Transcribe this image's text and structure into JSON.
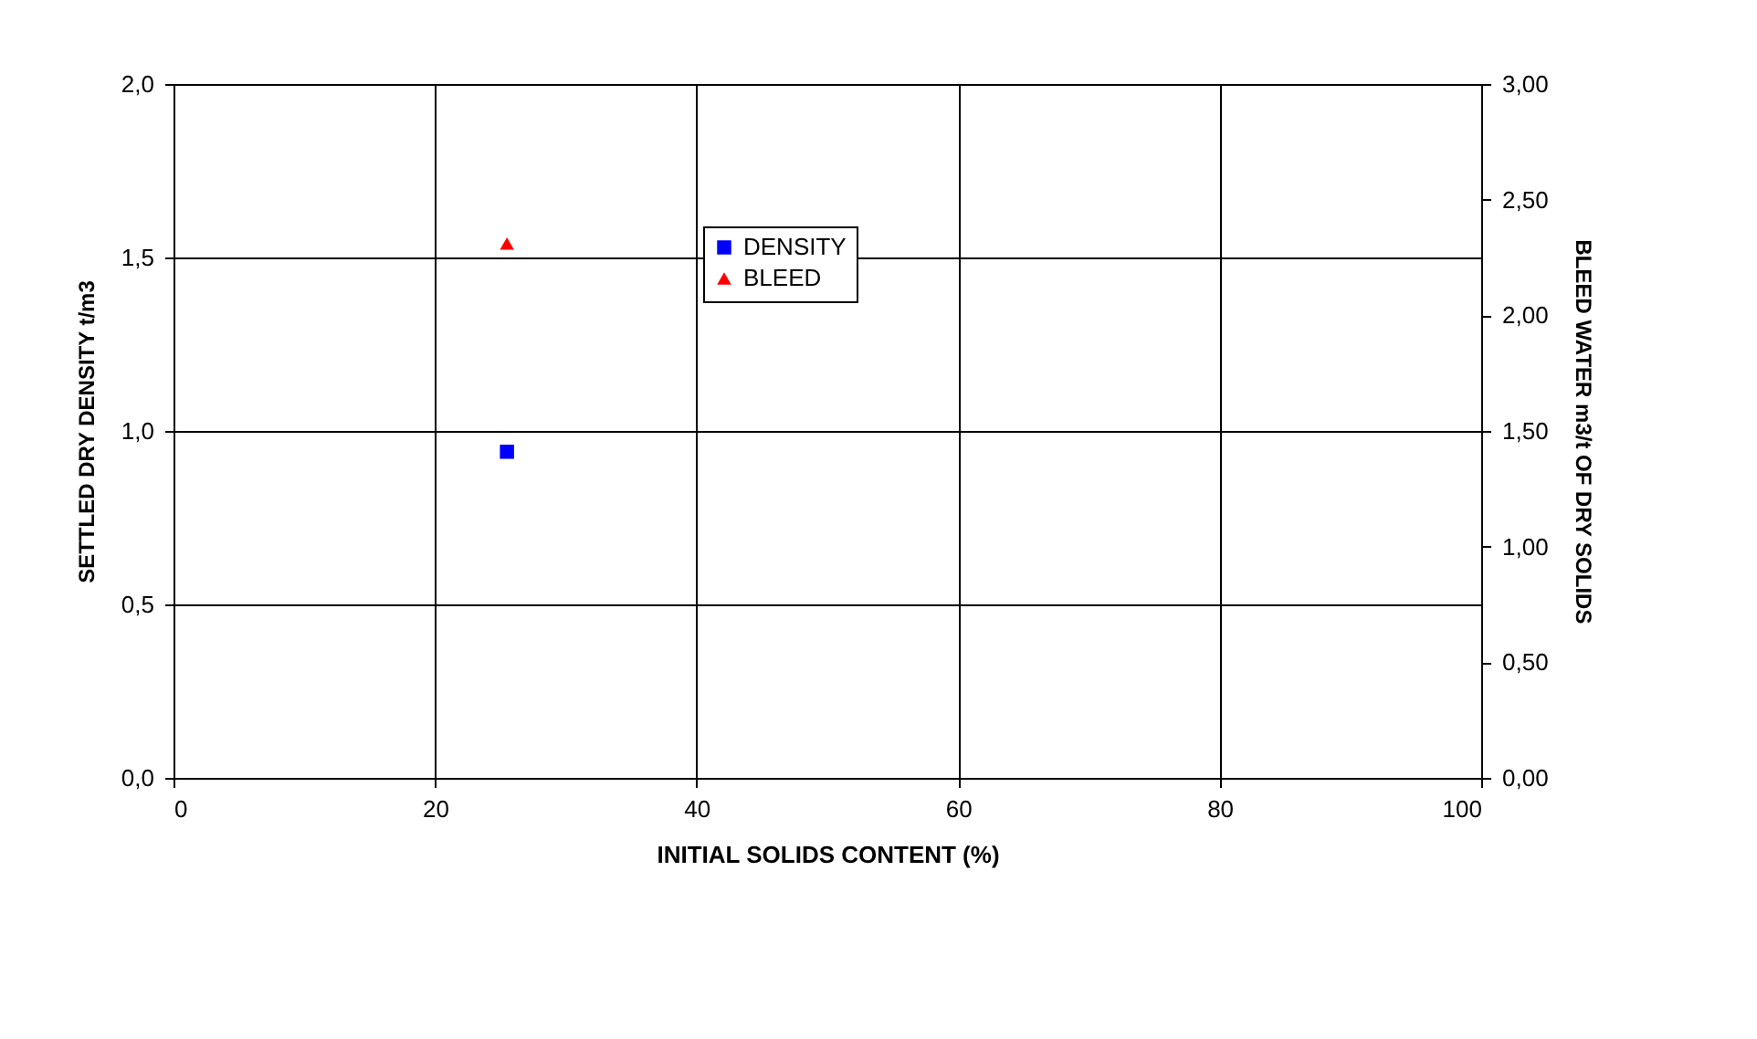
{
  "chart_data": {
    "type": "scatter",
    "xlabel": "INITIAL SOLIDS CONTENT (%)",
    "ylabel": "SETTLED DRY DENSITY  t/m3",
    "y2label": "BLEED WATER m3/t OF DRY SOLIDS",
    "xlim": [
      0,
      100
    ],
    "xticks": [
      0,
      20,
      40,
      60,
      80,
      100
    ],
    "ylim": [
      0,
      2
    ],
    "yticks": [
      {
        "value": 0,
        "label": "0,0"
      },
      {
        "value": 0.5,
        "label": "0,5"
      },
      {
        "value": 1,
        "label": "1,0"
      },
      {
        "value": 1.5,
        "label": "1,5"
      },
      {
        "value": 2,
        "label": "2,0"
      }
    ],
    "y2lim": [
      0,
      3
    ],
    "y2ticks": [
      {
        "value": 0,
        "label": "0,00"
      },
      {
        "value": 0.5,
        "label": "0,50"
      },
      {
        "value": 1,
        "label": "1,00"
      },
      {
        "value": 1.5,
        "label": "1,50"
      },
      {
        "value": 2,
        "label": "2,00"
      },
      {
        "value": 2.5,
        "label": "2,50"
      },
      {
        "value": 3,
        "label": "3,00"
      }
    ],
    "grid": true,
    "legend": "top",
    "series": [
      {
        "name": "DENSITY",
        "color": "#0000ff",
        "marker": "square",
        "x": [
          25.5
        ],
        "values": [
          0.94
        ]
      },
      {
        "name": "BLEED",
        "color": "#ff0000",
        "marker": "triangle",
        "axis": "y2",
        "x": [
          25.5
        ],
        "values": [
          2.31
        ]
      }
    ]
  }
}
